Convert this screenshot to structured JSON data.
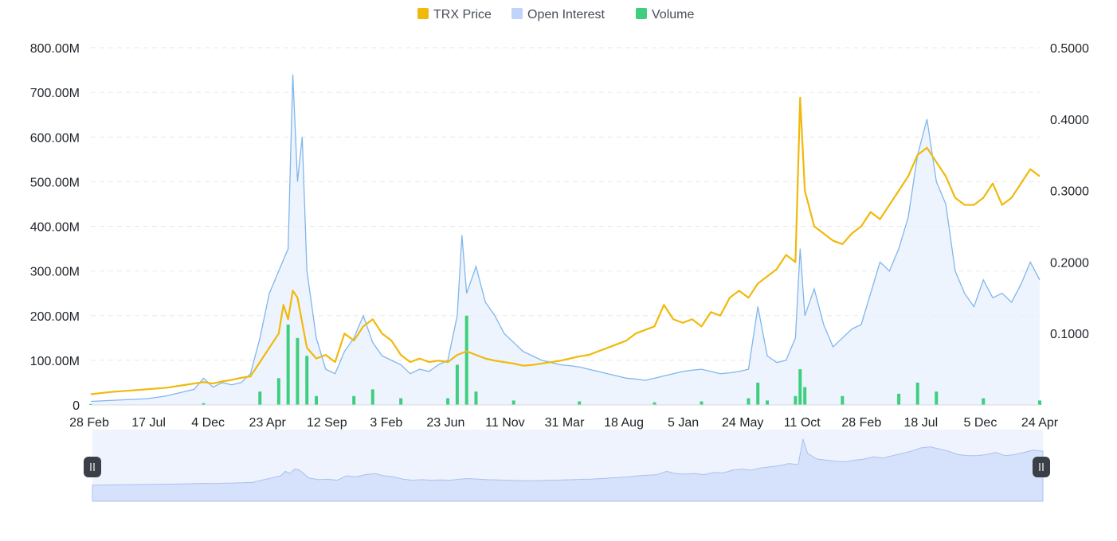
{
  "chart_data": {
    "type": "line",
    "legend_position": "top-center",
    "legend": [
      {
        "name": "TRX Price",
        "color": "#F0B90B"
      },
      {
        "name": "Open Interest",
        "color": "#BFD3FB"
      },
      {
        "name": "Volume",
        "color": "#3ECF7E"
      }
    ],
    "left_axis": {
      "ticks": [
        "0",
        "100.00M",
        "200.00M",
        "300.00M",
        "400.00M",
        "500.00M",
        "600.00M",
        "700.00M",
        "800.00M"
      ],
      "range": [
        0,
        800000000
      ]
    },
    "right_axis": {
      "ticks": [
        "0.1000",
        "0.2000",
        "0.3000",
        "0.4000",
        "0.5000"
      ],
      "range": [
        0,
        0.5
      ]
    },
    "x_ticks": [
      "28 Feb",
      "17 Jul",
      "4 Dec",
      "23 Apr",
      "12 Sep",
      "3 Feb",
      "23 Jun",
      "11 Nov",
      "31 Mar",
      "18 Aug",
      "5 Jan",
      "24 May",
      "11 Oct",
      "28 Feb",
      "18 Jul",
      "5 Dec",
      "24 Apr"
    ],
    "grid": "horizontal-dashed",
    "series": [
      {
        "name": "TRX Price",
        "axis": "right",
        "color": "#F0B90B",
        "values": [
          [
            0,
            0.015
          ],
          [
            2,
            0.018
          ],
          [
            4,
            0.02
          ],
          [
            6,
            0.022
          ],
          [
            8,
            0.024
          ],
          [
            10,
            0.028
          ],
          [
            11,
            0.03
          ],
          [
            12,
            0.032
          ],
          [
            13,
            0.03
          ],
          [
            14,
            0.033
          ],
          [
            15,
            0.035
          ],
          [
            16,
            0.038
          ],
          [
            17,
            0.04
          ],
          [
            18,
            0.06
          ],
          [
            19,
            0.08
          ],
          [
            20,
            0.1
          ],
          [
            20.5,
            0.14
          ],
          [
            21,
            0.12
          ],
          [
            21.5,
            0.16
          ],
          [
            22,
            0.15
          ],
          [
            23,
            0.08
          ],
          [
            24,
            0.065
          ],
          [
            25,
            0.07
          ],
          [
            26,
            0.06
          ],
          [
            27,
            0.1
          ],
          [
            28,
            0.09
          ],
          [
            29,
            0.11
          ],
          [
            30,
            0.12
          ],
          [
            31,
            0.1
          ],
          [
            32,
            0.09
          ],
          [
            33,
            0.07
          ],
          [
            34,
            0.06
          ],
          [
            35,
            0.065
          ],
          [
            36,
            0.06
          ],
          [
            37,
            0.062
          ],
          [
            38,
            0.06
          ],
          [
            39,
            0.07
          ],
          [
            40,
            0.075
          ],
          [
            41,
            0.07
          ],
          [
            42,
            0.065
          ],
          [
            43,
            0.062
          ],
          [
            44,
            0.06
          ],
          [
            45,
            0.058
          ],
          [
            46,
            0.055
          ],
          [
            47,
            0.056
          ],
          [
            48,
            0.058
          ],
          [
            49,
            0.06
          ],
          [
            50,
            0.062
          ],
          [
            51,
            0.065
          ],
          [
            52,
            0.068
          ],
          [
            53,
            0.07
          ],
          [
            54,
            0.075
          ],
          [
            55,
            0.08
          ],
          [
            56,
            0.085
          ],
          [
            57,
            0.09
          ],
          [
            58,
            0.1
          ],
          [
            59,
            0.105
          ],
          [
            60,
            0.11
          ],
          [
            61,
            0.14
          ],
          [
            62,
            0.12
          ],
          [
            63,
            0.115
          ],
          [
            64,
            0.12
          ],
          [
            65,
            0.11
          ],
          [
            66,
            0.13
          ],
          [
            67,
            0.125
          ],
          [
            68,
            0.15
          ],
          [
            69,
            0.16
          ],
          [
            70,
            0.15
          ],
          [
            71,
            0.17
          ],
          [
            72,
            0.18
          ],
          [
            73,
            0.19
          ],
          [
            74,
            0.21
          ],
          [
            75,
            0.2
          ],
          [
            75.5,
            0.43
          ],
          [
            76,
            0.3
          ],
          [
            77,
            0.25
          ],
          [
            78,
            0.24
          ],
          [
            79,
            0.23
          ],
          [
            80,
            0.225
          ],
          [
            81,
            0.24
          ],
          [
            82,
            0.25
          ],
          [
            83,
            0.27
          ],
          [
            84,
            0.26
          ],
          [
            85,
            0.28
          ],
          [
            86,
            0.3
          ],
          [
            87,
            0.32
          ],
          [
            88,
            0.35
          ],
          [
            89,
            0.36
          ],
          [
            90,
            0.34
          ],
          [
            91,
            0.32
          ],
          [
            92,
            0.29
          ],
          [
            93,
            0.28
          ],
          [
            94,
            0.28
          ],
          [
            95,
            0.29
          ],
          [
            96,
            0.31
          ],
          [
            97,
            0.28
          ],
          [
            98,
            0.29
          ],
          [
            99,
            0.31
          ],
          [
            100,
            0.33
          ],
          [
            101,
            0.32
          ]
        ]
      },
      {
        "name": "Open Interest",
        "axis": "left",
        "color": "#7FB6EC",
        "values": [
          [
            0,
            8000000
          ],
          [
            2,
            10000000
          ],
          [
            4,
            12000000
          ],
          [
            6,
            14000000
          ],
          [
            8,
            20000000
          ],
          [
            10,
            30000000
          ],
          [
            11,
            35000000
          ],
          [
            12,
            60000000
          ],
          [
            13,
            40000000
          ],
          [
            14,
            50000000
          ],
          [
            15,
            45000000
          ],
          [
            16,
            50000000
          ],
          [
            17,
            70000000
          ],
          [
            18,
            150000000
          ],
          [
            19,
            250000000
          ],
          [
            20,
            300000000
          ],
          [
            21,
            350000000
          ],
          [
            21.5,
            740000000
          ],
          [
            22,
            500000000
          ],
          [
            22.5,
            600000000
          ],
          [
            23,
            300000000
          ],
          [
            24,
            150000000
          ],
          [
            25,
            80000000
          ],
          [
            26,
            70000000
          ],
          [
            27,
            120000000
          ],
          [
            28,
            150000000
          ],
          [
            29,
            200000000
          ],
          [
            30,
            140000000
          ],
          [
            31,
            110000000
          ],
          [
            32,
            100000000
          ],
          [
            33,
            90000000
          ],
          [
            34,
            70000000
          ],
          [
            35,
            80000000
          ],
          [
            36,
            75000000
          ],
          [
            37,
            90000000
          ],
          [
            38,
            100000000
          ],
          [
            39,
            200000000
          ],
          [
            39.5,
            380000000
          ],
          [
            40,
            250000000
          ],
          [
            41,
            310000000
          ],
          [
            42,
            230000000
          ],
          [
            43,
            200000000
          ],
          [
            44,
            160000000
          ],
          [
            45,
            140000000
          ],
          [
            46,
            120000000
          ],
          [
            47,
            110000000
          ],
          [
            48,
            100000000
          ],
          [
            49,
            95000000
          ],
          [
            50,
            90000000
          ],
          [
            51,
            88000000
          ],
          [
            52,
            85000000
          ],
          [
            53,
            80000000
          ],
          [
            54,
            75000000
          ],
          [
            55,
            70000000
          ],
          [
            56,
            65000000
          ],
          [
            57,
            60000000
          ],
          [
            58,
            58000000
          ],
          [
            59,
            55000000
          ],
          [
            60,
            60000000
          ],
          [
            61,
            65000000
          ],
          [
            62,
            70000000
          ],
          [
            63,
            75000000
          ],
          [
            64,
            78000000
          ],
          [
            65,
            80000000
          ],
          [
            66,
            75000000
          ],
          [
            67,
            70000000
          ],
          [
            68,
            72000000
          ],
          [
            69,
            75000000
          ],
          [
            70,
            80000000
          ],
          [
            71,
            220000000
          ],
          [
            72,
            110000000
          ],
          [
            73,
            95000000
          ],
          [
            74,
            100000000
          ],
          [
            75,
            150000000
          ],
          [
            75.5,
            350000000
          ],
          [
            76,
            200000000
          ],
          [
            77,
            260000000
          ],
          [
            78,
            180000000
          ],
          [
            79,
            130000000
          ],
          [
            80,
            150000000
          ],
          [
            81,
            170000000
          ],
          [
            82,
            180000000
          ],
          [
            83,
            250000000
          ],
          [
            84,
            320000000
          ],
          [
            85,
            300000000
          ],
          [
            86,
            350000000
          ],
          [
            87,
            420000000
          ],
          [
            88,
            560000000
          ],
          [
            89,
            640000000
          ],
          [
            90,
            500000000
          ],
          [
            91,
            450000000
          ],
          [
            92,
            300000000
          ],
          [
            93,
            250000000
          ],
          [
            94,
            220000000
          ],
          [
            95,
            280000000
          ],
          [
            96,
            240000000
          ],
          [
            97,
            250000000
          ],
          [
            98,
            230000000
          ],
          [
            99,
            270000000
          ],
          [
            100,
            320000000
          ],
          [
            101,
            280000000
          ]
        ]
      },
      {
        "name": "Volume",
        "axis": "left",
        "color": "#3ECF7E",
        "values": [
          [
            0,
            2000000
          ],
          [
            12,
            4000000
          ],
          [
            18,
            30000000
          ],
          [
            20,
            60000000
          ],
          [
            21,
            180000000
          ],
          [
            22,
            150000000
          ],
          [
            23,
            110000000
          ],
          [
            24,
            20000000
          ],
          [
            28,
            20000000
          ],
          [
            30,
            35000000
          ],
          [
            33,
            15000000
          ],
          [
            38,
            15000000
          ],
          [
            39,
            90000000
          ],
          [
            40,
            200000000
          ],
          [
            41,
            30000000
          ],
          [
            45,
            10000000
          ],
          [
            52,
            8000000
          ],
          [
            60,
            6000000
          ],
          [
            65,
            8000000
          ],
          [
            70,
            15000000
          ],
          [
            71,
            50000000
          ],
          [
            72,
            10000000
          ],
          [
            75,
            20000000
          ],
          [
            75.5,
            80000000
          ],
          [
            76,
            40000000
          ],
          [
            80,
            20000000
          ],
          [
            86,
            25000000
          ],
          [
            88,
            50000000
          ],
          [
            90,
            30000000
          ],
          [
            95,
            15000000
          ],
          [
            101,
            10000000
          ]
        ]
      }
    ]
  }
}
